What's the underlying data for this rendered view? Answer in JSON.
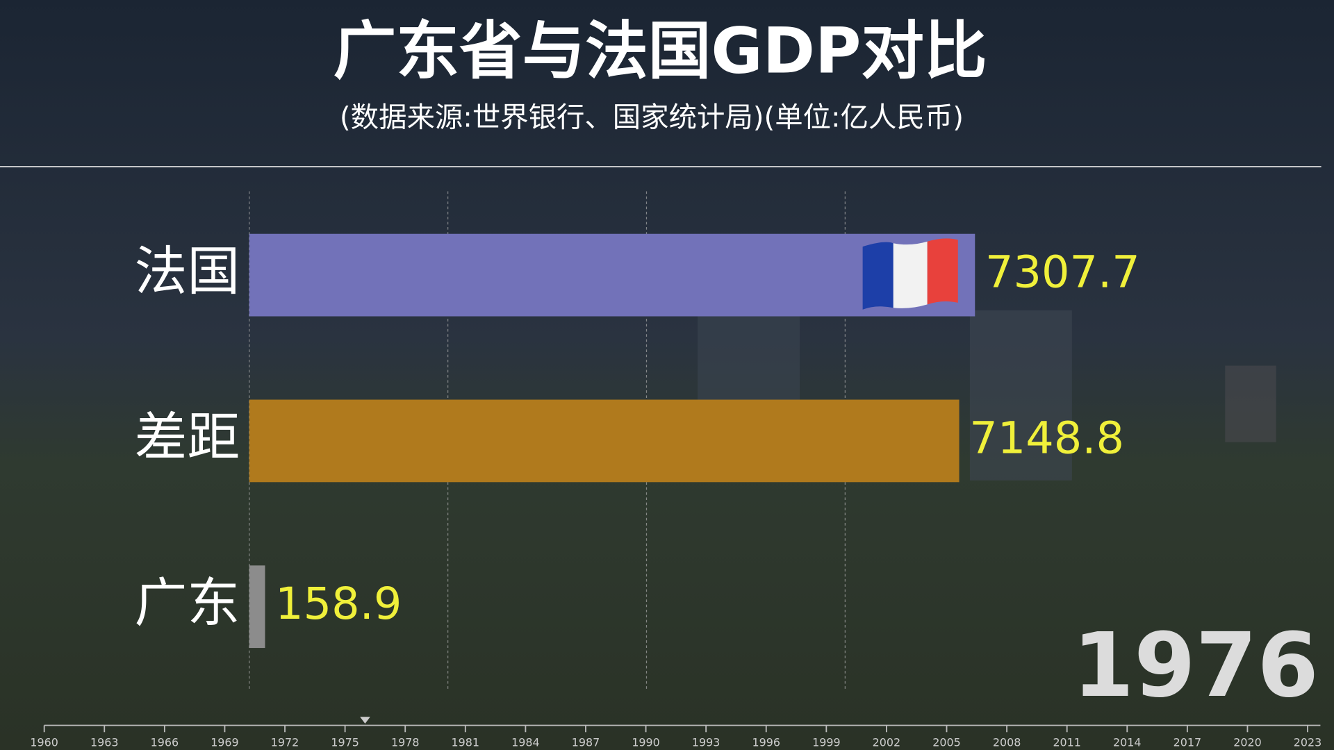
{
  "chart_data": {
    "type": "bar",
    "orientation": "horizontal",
    "title": "广东省与法国GDP对比",
    "subtitle": "(数据来源:世界银行、国家统计局)(单位:亿人民币)",
    "categories": [
      "法国",
      "差距",
      "广东"
    ],
    "values": [
      7307.7,
      7148.8,
      158.9
    ],
    "colors": [
      "#7272b9",
      "#b07a1d",
      "#8c8c8c"
    ],
    "value_label_color": "#f0f03a",
    "xlim": [
      0,
      7307.7
    ],
    "xticks": [
      0,
      2000,
      4000,
      6000
    ],
    "grid": true,
    "year": 1976,
    "timeline": {
      "lim": [
        1960,
        2023
      ],
      "ticks": [
        1960,
        1963,
        1966,
        1969,
        1972,
        1975,
        1978,
        1981,
        1984,
        1987,
        1990,
        1993,
        1996,
        1999,
        2002,
        2005,
        2008,
        2011,
        2014,
        2017,
        2020,
        2023
      ]
    }
  }
}
